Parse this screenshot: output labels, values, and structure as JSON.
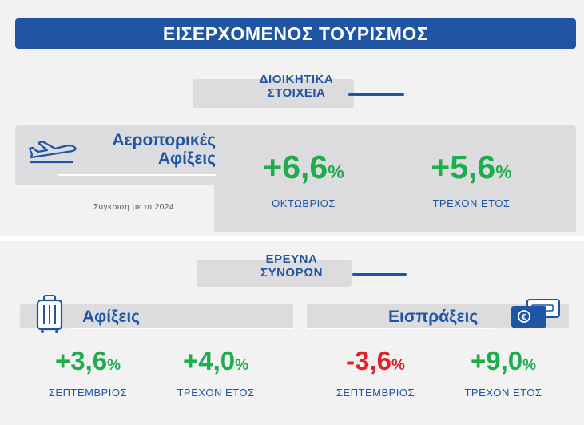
{
  "title": "ΕΙΣΕΡΧΟΜΕΝΟΣ ΤΟΥΡΙΣΜΟΣ",
  "section1": {
    "header_line1": "ΔΙΟΙΚΗΤΙΚΑ",
    "header_line2": "ΣΤΟΙΧΕΙΑ",
    "heading_line1": "Αεροπορικές",
    "heading_line2": "Αφίξεις",
    "comparison_note": "Σύγκριση με το 2024",
    "icon": "airplane-icon",
    "stats": [
      {
        "value": "+6,6",
        "unit": "%",
        "label": "ΟΚΤΩΒΡΙΟΣ",
        "color": "#1eac4c"
      },
      {
        "value": "+5,6",
        "unit": "%",
        "label": "ΤΡΕΧΟΝ ΕΤΟΣ",
        "color": "#1eac4c"
      }
    ]
  },
  "section2": {
    "header_line1": "ΕΡΕΥΝΑ",
    "header_line2": "ΣΥΝΟΡΩΝ",
    "arrivals": {
      "heading": "Αφίξεις",
      "icon": "suitcase-icon",
      "stats": [
        {
          "value": "+3,6",
          "unit": "%",
          "label": "ΣΕΠΤΕΜΒΡΙΟΣ",
          "color": "#1eac4c"
        },
        {
          "value": "+4,0",
          "unit": "%",
          "label": "ΤΡΕΧΟΝ ΕΤΟΣ",
          "color": "#1eac4c"
        }
      ]
    },
    "receipts": {
      "heading": "Εισπράξεις",
      "icon": "euro-card-icon",
      "stats": [
        {
          "value": "-3,6",
          "unit": "%",
          "label": "ΣΕΠΤΕΜΒΡΙΟΣ",
          "color": "#e0202a"
        },
        {
          "value": "+9,0",
          "unit": "%",
          "label": "ΤΡΕΧΟΝ ΕΤΟΣ",
          "color": "#1eac4c"
        }
      ]
    }
  },
  "colors": {
    "brand_blue": "#1f55a3",
    "positive": "#1eac4c",
    "negative": "#e0202a"
  }
}
